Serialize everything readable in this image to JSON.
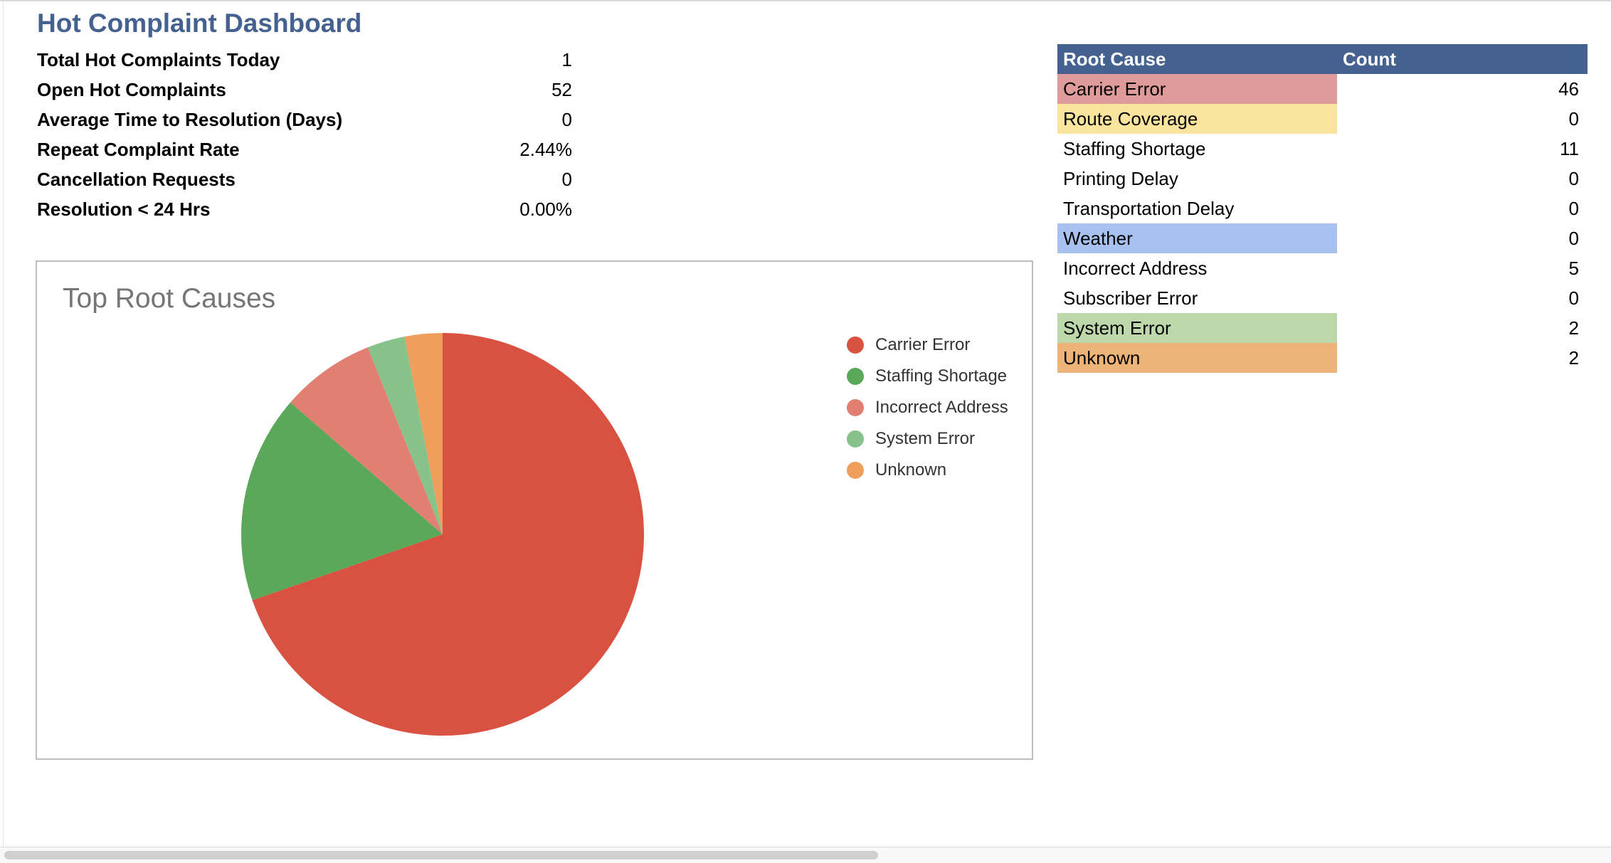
{
  "dashboard": {
    "title": "Hot Complaint Dashboard"
  },
  "metrics": [
    {
      "label": "Total Hot Complaints Today",
      "value": "1"
    },
    {
      "label": "Open Hot Complaints",
      "value": "52"
    },
    {
      "label": "Average Time to Resolution (Days)",
      "value": "0"
    },
    {
      "label": "Repeat Complaint Rate",
      "value": "2.44%"
    },
    {
      "label": "Cancellation Requests",
      "value": "0"
    },
    {
      "label": "Resolution < 24 Hrs",
      "value": "0.00%"
    }
  ],
  "root_cause_table": {
    "header_cause": "Root Cause",
    "header_count": "Count",
    "header_color": "#44618f",
    "rows": [
      {
        "cause": "Carrier Error",
        "count": "46",
        "color": "#df9b9a"
      },
      {
        "cause": "Route Coverage",
        "count": "0",
        "color": "#fbe49e"
      },
      {
        "cause": "Staffing Shortage",
        "count": "11",
        "color": ""
      },
      {
        "cause": "Printing Delay",
        "count": "0",
        "color": ""
      },
      {
        "cause": "Transportation Delay",
        "count": "0",
        "color": ""
      },
      {
        "cause": "Weather",
        "count": "0",
        "color": "#a9c1ef"
      },
      {
        "cause": "Incorrect Address",
        "count": "5",
        "color": ""
      },
      {
        "cause": "Subscriber Error",
        "count": "0",
        "color": ""
      },
      {
        "cause": "System Error",
        "count": "2",
        "color": "#bdd8ab"
      },
      {
        "cause": "Unknown",
        "count": "2",
        "color": "#ecb478"
      }
    ]
  },
  "chart_data": {
    "type": "pie",
    "title": "Top Root Causes",
    "categories": [
      "Carrier Error",
      "Staffing Shortage",
      "Incorrect Address",
      "System Error",
      "Unknown"
    ],
    "values": [
      46,
      11,
      5,
      2,
      2
    ],
    "colors": [
      "#d95141",
      "#5aa85a",
      "#e17f73",
      "#86c28a",
      "#f09e5c"
    ],
    "legend_position": "right"
  }
}
